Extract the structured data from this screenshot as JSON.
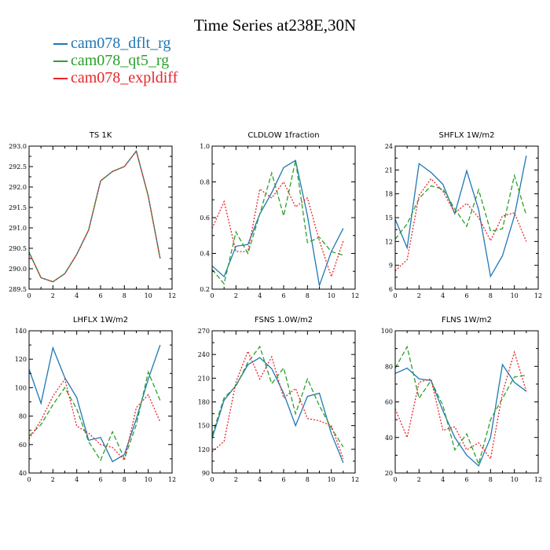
{
  "title": "Time Series at238E,30N",
  "legend": [
    {
      "label": "cam078_dflt_rg",
      "color": "#1f77b4",
      "dash": "solid"
    },
    {
      "label": "cam078_qt5_rg",
      "color": "#2ca02c",
      "dash": "dash"
    },
    {
      "label": "cam078_expldiff",
      "color": "#e8262b",
      "dash": "dot"
    }
  ],
  "chart_data": [
    {
      "type": "line",
      "title": "TS   1K",
      "x": [
        0,
        1,
        2,
        3,
        4,
        5,
        6,
        7,
        8,
        9,
        10,
        11
      ],
      "xlim": [
        0,
        12
      ],
      "xticks": [
        0,
        2,
        4,
        6,
        8,
        10,
        12
      ],
      "ylim": [
        289.5,
        293.0
      ],
      "yticks": [
        289.5,
        290.0,
        290.5,
        291.0,
        291.5,
        292.0,
        292.5,
        293.0
      ],
      "ytick_labels": [
        "289.5",
        "290.0",
        "290.5",
        "291.0",
        "291.5",
        "292.0",
        "292.5",
        "293.0"
      ],
      "series": [
        {
          "name": "cam078_dflt_rg",
          "values": [
            290.4,
            289.78,
            289.68,
            289.88,
            290.35,
            290.95,
            292.15,
            292.38,
            292.5,
            292.88,
            291.78,
            290.25
          ]
        },
        {
          "name": "cam078_qt5_rg",
          "values": [
            290.4,
            289.78,
            289.68,
            289.88,
            290.35,
            290.95,
            292.15,
            292.38,
            292.5,
            292.88,
            291.78,
            290.25
          ]
        },
        {
          "name": "cam078_expldiff",
          "values": [
            290.4,
            289.78,
            289.68,
            289.88,
            290.35,
            290.95,
            292.15,
            292.38,
            292.5,
            292.88,
            291.78,
            290.25
          ]
        }
      ]
    },
    {
      "type": "line",
      "title": "CLDLOW   1fraction",
      "x": [
        0,
        1,
        2,
        3,
        4,
        5,
        6,
        7,
        8,
        9,
        10,
        11
      ],
      "xlim": [
        0,
        12
      ],
      "xticks": [
        0,
        2,
        4,
        6,
        8,
        10,
        12
      ],
      "ylim": [
        0.2,
        1.0
      ],
      "yticks": [
        0.2,
        0.4,
        0.6,
        0.8,
        1.0
      ],
      "ytick_labels": [
        "0.2",
        "0.4",
        "0.6",
        "0.8",
        "1.0"
      ],
      "series": [
        {
          "name": "cam078_dflt_rg",
          "values": [
            0.33,
            0.27,
            0.44,
            0.45,
            0.62,
            0.74,
            0.88,
            0.92,
            0.61,
            0.22,
            0.41,
            0.54
          ]
        },
        {
          "name": "cam078_qt5_rg",
          "values": [
            0.31,
            0.23,
            0.52,
            0.4,
            0.62,
            0.85,
            0.61,
            0.92,
            0.46,
            0.49,
            0.41,
            0.39
          ]
        },
        {
          "name": "cam078_expldiff",
          "values": [
            0.54,
            0.69,
            0.41,
            0.41,
            0.76,
            0.71,
            0.8,
            0.66,
            0.71,
            0.47,
            0.27,
            0.47
          ]
        }
      ]
    },
    {
      "type": "line",
      "title": "SHFLX   1W/m2",
      "x": [
        0,
        1,
        2,
        3,
        4,
        5,
        6,
        7,
        8,
        9,
        10,
        11
      ],
      "xlim": [
        0,
        12
      ],
      "xticks": [
        0,
        2,
        4,
        6,
        8,
        10,
        12
      ],
      "ylim": [
        6,
        24
      ],
      "yticks": [
        6,
        9,
        12,
        15,
        18,
        21,
        24
      ],
      "ytick_labels": [
        "6",
        "9",
        "12",
        "15",
        "18",
        "21",
        "24"
      ],
      "series": [
        {
          "name": "cam078_dflt_rg",
          "values": [
            14.8,
            11.2,
            21.8,
            20.7,
            19.2,
            15.5,
            20.9,
            16.0,
            7.6,
            10.2,
            15.2,
            22.8
          ]
        },
        {
          "name": "cam078_qt5_rg",
          "values": [
            12.3,
            14.2,
            17.4,
            19.0,
            18.6,
            16.1,
            13.9,
            18.5,
            13.3,
            13.6,
            20.3,
            15.3
          ]
        },
        {
          "name": "cam078_expldiff",
          "values": [
            8.3,
            9.7,
            17.8,
            19.9,
            18.3,
            15.6,
            16.8,
            15.0,
            12.1,
            15.2,
            15.6,
            12.0
          ]
        }
      ]
    },
    {
      "type": "line",
      "title": "LHFLX   1W/m2",
      "x": [
        0,
        1,
        2,
        3,
        4,
        5,
        6,
        7,
        8,
        9,
        10,
        11
      ],
      "xlim": [
        0,
        12
      ],
      "xticks": [
        0,
        2,
        4,
        6,
        8,
        10,
        12
      ],
      "ylim": [
        40,
        140
      ],
      "yticks": [
        40,
        60,
        80,
        100,
        120,
        140
      ],
      "ytick_labels": [
        "40",
        "60",
        "80",
        "100",
        "120",
        "140"
      ],
      "series": [
        {
          "name": "cam078_dflt_rg",
          "values": [
            113,
            89,
            128,
            107,
            93,
            63,
            65,
            48,
            53,
            78,
            106,
            130
          ]
        },
        {
          "name": "cam078_qt5_rg",
          "values": [
            66,
            74,
            88,
            100,
            85,
            62,
            49,
            69,
            50,
            74,
            111,
            91
          ]
        },
        {
          "name": "cam078_expldiff",
          "values": [
            64,
            77,
            94,
            106,
            73,
            68,
            60,
            58,
            49,
            86,
            95,
            76
          ]
        }
      ]
    },
    {
      "type": "line",
      "title": "FSNS   1.0W/m2",
      "x": [
        0,
        1,
        2,
        3,
        4,
        5,
        6,
        7,
        8,
        9,
        10,
        11
      ],
      "xlim": [
        0,
        12
      ],
      "xticks": [
        0,
        2,
        4,
        6,
        8,
        10,
        12
      ],
      "ylim": [
        90,
        270
      ],
      "yticks": [
        90,
        120,
        150,
        180,
        210,
        240,
        270
      ],
      "ytick_labels": [
        "90",
        "120",
        "150",
        "180",
        "210",
        "240",
        "270"
      ],
      "series": [
        {
          "name": "cam078_dflt_rg",
          "values": [
            134,
            182,
            201,
            227,
            236,
            222,
            191,
            150,
            187,
            191,
            140,
            103
          ]
        },
        {
          "name": "cam078_qt5_rg",
          "values": [
            138,
            185,
            200,
            230,
            250,
            203,
            223,
            165,
            209,
            175,
            147,
            123
          ]
        },
        {
          "name": "cam078_expldiff",
          "values": [
            117,
            130,
            205,
            244,
            209,
            237,
            185,
            197,
            159,
            156,
            150,
            108
          ]
        }
      ]
    },
    {
      "type": "line",
      "title": "FLNS   1W/m2",
      "x": [
        0,
        1,
        2,
        3,
        4,
        5,
        6,
        7,
        8,
        9,
        10,
        11
      ],
      "xlim": [
        0,
        12
      ],
      "xticks": [
        0,
        2,
        4,
        6,
        8,
        10,
        12
      ],
      "ylim": [
        20,
        100
      ],
      "yticks": [
        20,
        40,
        60,
        80,
        100
      ],
      "ytick_labels": [
        "20",
        "40",
        "60",
        "80",
        "100"
      ],
      "series": [
        {
          "name": "cam078_dflt_rg",
          "values": [
            76,
            79,
            73,
            72,
            55,
            40,
            30,
            24,
            40,
            81,
            71,
            66
          ]
        },
        {
          "name": "cam078_qt5_rg",
          "values": [
            79,
            91,
            62,
            72,
            58,
            33,
            42,
            25,
            50,
            62,
            74,
            75
          ]
        },
        {
          "name": "cam078_expldiff",
          "values": [
            56,
            40,
            71,
            73,
            44,
            46,
            33,
            37,
            28,
            65,
            88,
            66
          ]
        }
      ]
    }
  ]
}
